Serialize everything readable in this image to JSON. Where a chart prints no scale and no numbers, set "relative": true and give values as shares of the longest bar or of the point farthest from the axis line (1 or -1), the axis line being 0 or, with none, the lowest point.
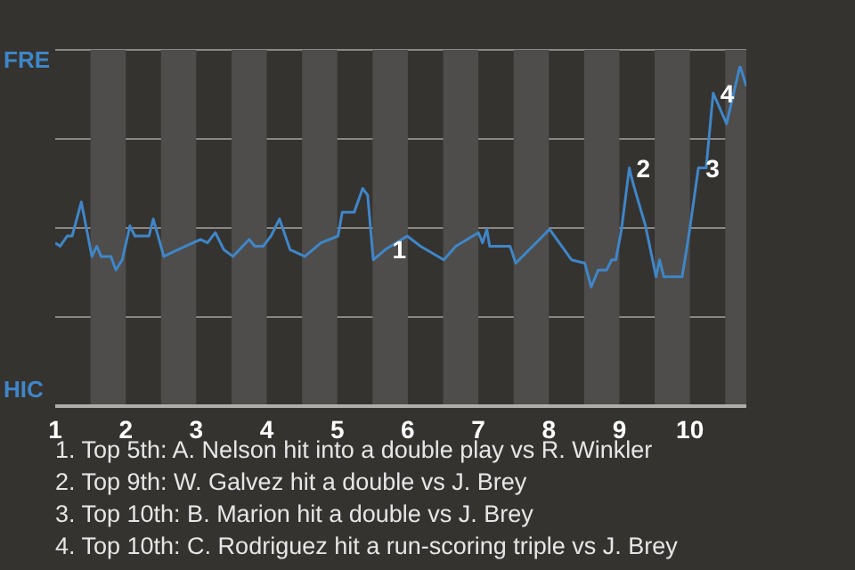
{
  "chart_data": {
    "type": "line",
    "relative": true,
    "x": [
      1.0,
      1.07,
      1.17,
      1.24,
      1.37,
      1.52,
      1.59,
      1.65,
      1.79,
      1.86,
      1.95,
      2.06,
      2.13,
      2.33,
      2.39,
      2.54,
      2.74,
      3.06,
      3.16,
      3.27,
      3.39,
      3.52,
      3.75,
      3.83,
      3.95,
      4.06,
      4.18,
      4.33,
      4.54,
      4.77,
      5.01,
      5.07,
      5.24,
      5.36,
      5.43,
      5.51,
      5.68,
      5.99,
      6.18,
      6.51,
      6.68,
      7.0,
      7.06,
      7.12,
      7.16,
      7.45,
      7.53,
      8.01,
      8.32,
      8.51,
      8.6,
      8.7,
      8.82,
      8.89,
      8.95,
      9.03,
      9.14,
      9.2,
      9.37,
      9.52,
      9.57,
      9.63,
      9.89,
      9.99,
      10.12,
      10.23,
      10.33,
      10.52,
      10.71,
      10.8
    ],
    "series": [
      {
        "color": "#3f86c8",
        "values": [
          0.48,
          0.47,
          0.5,
          0.5,
          0.6,
          0.44,
          0.47,
          0.44,
          0.44,
          0.4,
          0.43,
          0.53,
          0.5,
          0.5,
          0.55,
          0.44,
          0.46,
          0.49,
          0.48,
          0.51,
          0.46,
          0.44,
          0.49,
          0.47,
          0.47,
          0.5,
          0.55,
          0.46,
          0.44,
          0.48,
          0.5,
          0.57,
          0.57,
          0.64,
          0.62,
          0.43,
          0.46,
          0.5,
          0.47,
          0.43,
          0.47,
          0.51,
          0.48,
          0.52,
          0.47,
          0.47,
          0.42,
          0.52,
          0.43,
          0.42,
          0.35,
          0.4,
          0.4,
          0.43,
          0.43,
          0.52,
          0.7,
          0.65,
          0.53,
          0.38,
          0.43,
          0.38,
          0.38,
          0.51,
          0.7,
          0.7,
          0.92,
          0.83,
          1,
          0.94
        ]
      }
    ],
    "xlim": [
      1,
      10.8
    ],
    "xticks": [
      1,
      2,
      3,
      4,
      5,
      6,
      7,
      8,
      9,
      10
    ],
    "grid": "y",
    "bands": [
      {
        "axis": "x",
        "from": 1.5,
        "to": 2,
        "color": "#4e4d4b"
      },
      {
        "axis": "x",
        "from": 2.5,
        "to": 3,
        "color": "#4e4d4b"
      },
      {
        "axis": "x",
        "from": 3.5,
        "to": 4,
        "color": "#4e4d4b"
      },
      {
        "axis": "x",
        "from": 4.5,
        "to": 5,
        "color": "#4e4d4b"
      },
      {
        "axis": "x",
        "from": 5.5,
        "to": 6,
        "color": "#4e4d4b"
      },
      {
        "axis": "x",
        "from": 6.5,
        "to": 7,
        "color": "#4e4d4b"
      },
      {
        "axis": "x",
        "from": 7.5,
        "to": 8,
        "color": "#4e4d4b"
      },
      {
        "axis": "x",
        "from": 8.5,
        "to": 9,
        "color": "#4e4d4b"
      },
      {
        "axis": "x",
        "from": 9.5,
        "to": 10,
        "color": "#4e4d4b"
      },
      {
        "axis": "x",
        "from": 10.5,
        "to": 10.8,
        "color": "#4e4d4b"
      }
    ],
    "annotations": [
      "FRE",
      "HIC",
      {
        "text": "1",
        "x": 5.68,
        "y": 0.46
      },
      {
        "text": "2",
        "x": 9.14,
        "y": 0.7
      },
      {
        "text": "3",
        "x": 10.12,
        "y": 0.7
      },
      {
        "text": "4",
        "x": 10.33,
        "y": 0.92
      },
      "1. Top 5th: A. Nelson hit into a double play vs R. Winkler",
      "2. Top 9th: W. Galvez hit a double vs J. Brey",
      "3. Top 10th: B. Marion hit a double vs J. Brey",
      "4. Top 10th: C. Rodriguez hit a run-scoring triple vs J. Brey"
    ],
    "marker": "none",
    "legend": false
  }
}
